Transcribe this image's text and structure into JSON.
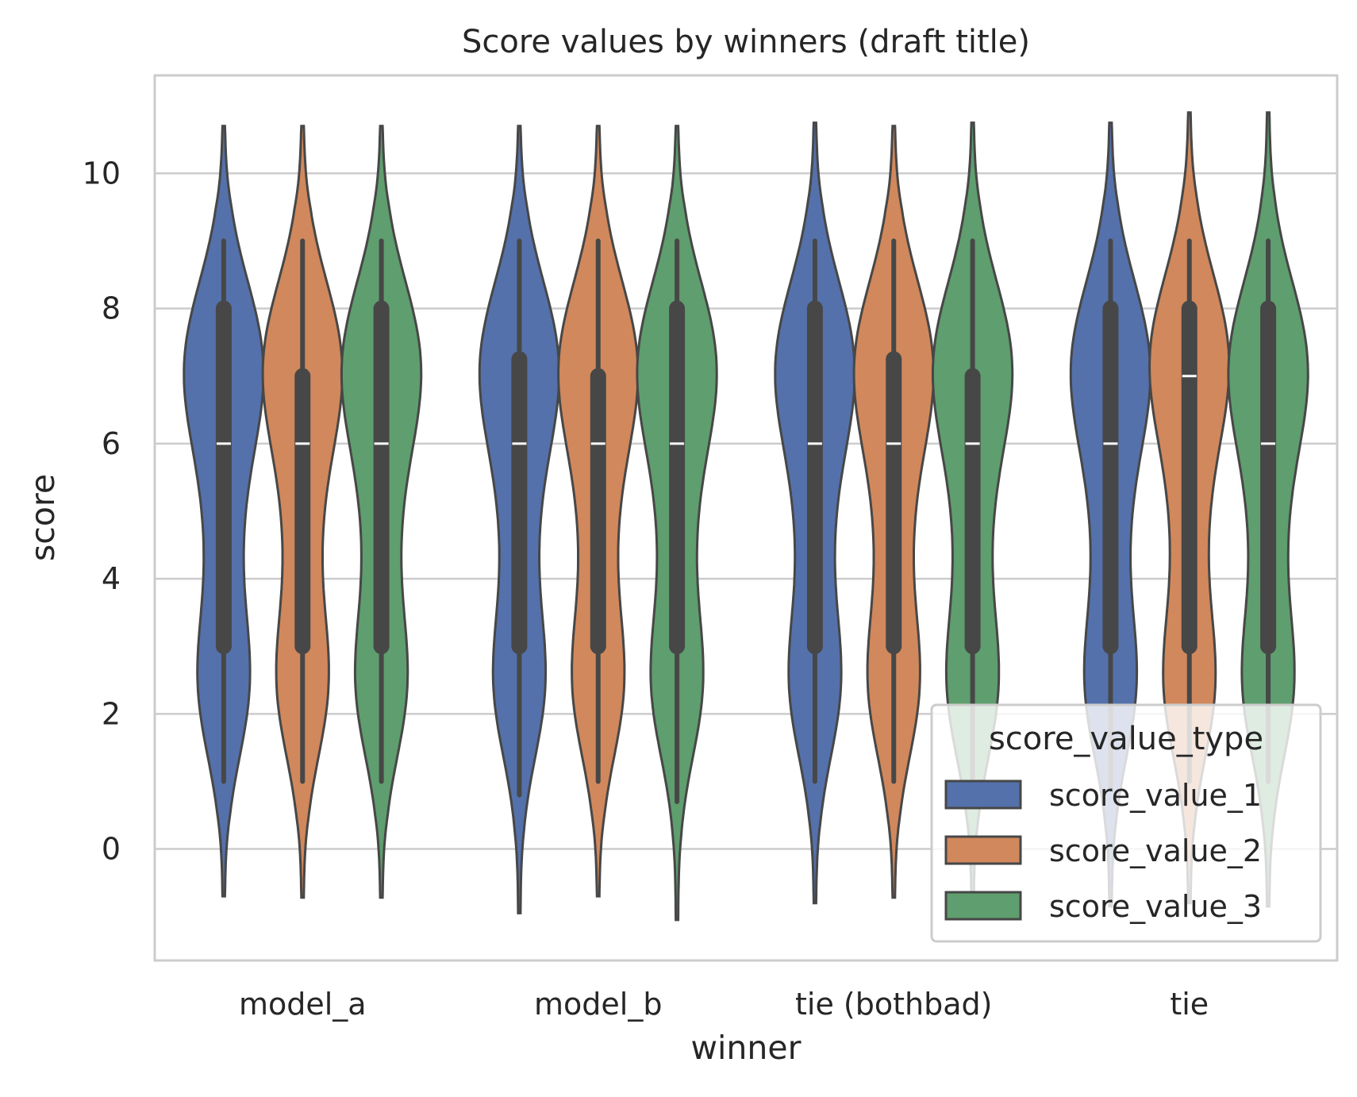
{
  "chart_data": {
    "type": "violin",
    "title": "Score values by winners (draft title)",
    "xlabel": "winner",
    "ylabel": "score",
    "categories": [
      "model_a",
      "model_b",
      "tie (bothbad)",
      "tie"
    ],
    "ylim": [
      -1.65,
      11.45
    ],
    "yticks": [
      0,
      2,
      4,
      6,
      8,
      10
    ],
    "grid": "horizontal",
    "legend": {
      "title": "score_value_type",
      "placement": "lower-right"
    },
    "series": [
      {
        "name": "score_value_1",
        "color": "#5471ab",
        "stats": [
          {
            "min": 1,
            "q1": 3,
            "median": 6,
            "q3": 8,
            "max": 9,
            "kde_low": -0.7,
            "kde_high": 10.7,
            "modes": [
              2.4,
              7.2
            ]
          },
          {
            "min": 0.8,
            "q1": 3,
            "median": 6,
            "q3": 7.25,
            "max": 9,
            "kde_low": -0.95,
            "kde_high": 10.7,
            "modes": [
              2.4,
              7.2
            ]
          },
          {
            "min": 1,
            "q1": 3,
            "median": 6,
            "q3": 8,
            "max": 9,
            "kde_low": -0.8,
            "kde_high": 10.75,
            "modes": [
              2.4,
              7.2
            ]
          },
          {
            "min": 0.9,
            "q1": 3,
            "median": 6,
            "q3": 8,
            "max": 9,
            "kde_low": -0.85,
            "kde_high": 10.75,
            "modes": [
              2.4,
              7.2
            ]
          }
        ]
      },
      {
        "name": "score_value_2",
        "color": "#d1885c",
        "stats": [
          {
            "min": 1,
            "q1": 3,
            "median": 6,
            "q3": 7,
            "max": 9,
            "kde_low": -0.72,
            "kde_high": 10.7,
            "modes": [
              2.4,
              7.2
            ]
          },
          {
            "min": 1,
            "q1": 3,
            "median": 6,
            "q3": 7,
            "max": 9,
            "kde_low": -0.7,
            "kde_high": 10.7,
            "modes": [
              2.4,
              7.2
            ]
          },
          {
            "min": 1,
            "q1": 3,
            "median": 6,
            "q3": 7.25,
            "max": 9,
            "kde_low": -0.72,
            "kde_high": 10.7,
            "modes": [
              2.4,
              7.2
            ]
          },
          {
            "min": 1,
            "q1": 3,
            "median": 7,
            "q3": 8,
            "max": 9,
            "kde_low": -0.8,
            "kde_high": 10.9,
            "modes": [
              2.4,
              7.3
            ]
          }
        ]
      },
      {
        "name": "score_value_3",
        "color": "#5f9e6e",
        "stats": [
          {
            "min": 1,
            "q1": 3,
            "median": 6,
            "q3": 8,
            "max": 9,
            "kde_low": -0.72,
            "kde_high": 10.7,
            "modes": [
              2.4,
              7.2
            ]
          },
          {
            "min": 0.7,
            "q1": 3,
            "median": 6,
            "q3": 8,
            "max": 9,
            "kde_low": -1.05,
            "kde_high": 10.7,
            "modes": [
              2.4,
              7.2
            ]
          },
          {
            "min": 1,
            "q1": 3,
            "median": 6,
            "q3": 7,
            "max": 9,
            "kde_low": -0.7,
            "kde_high": 10.75,
            "modes": [
              2.4,
              7.2
            ]
          },
          {
            "min": 1,
            "q1": 3,
            "median": 6,
            "q3": 8,
            "max": 9,
            "kde_low": -0.85,
            "kde_high": 10.9,
            "modes": [
              2.4,
              7.2
            ]
          }
        ]
      }
    ]
  }
}
